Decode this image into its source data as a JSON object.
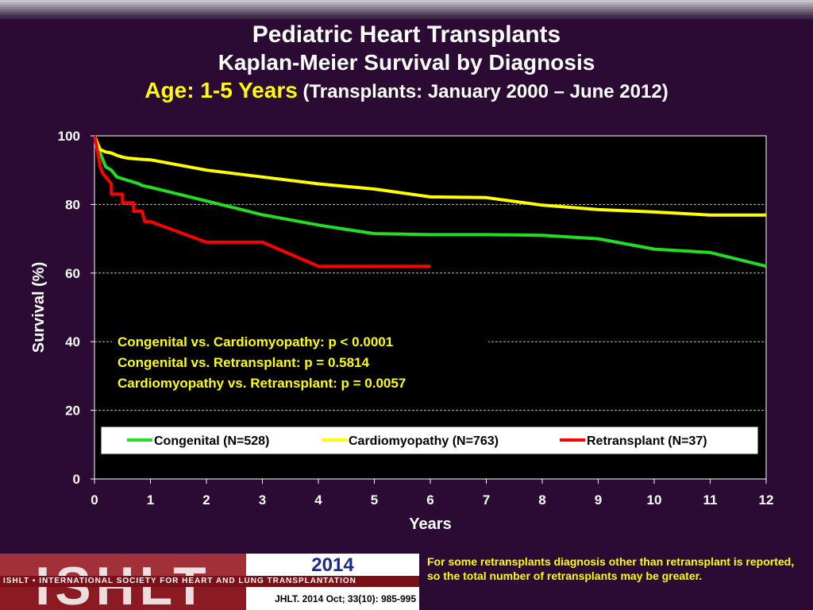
{
  "title": {
    "line1": "Pediatric Heart Transplants",
    "line2": "Kaplan-Meier Survival by Diagnosis",
    "line3_highlight": "Age: 1-5 Years",
    "line3_rest": "(Transplants: January 2000 – June 2012)"
  },
  "chart_data": {
    "type": "line",
    "xlabel": "Years",
    "ylabel": "Survival (%)",
    "xlim": [
      0,
      12
    ],
    "ylim": [
      0,
      100
    ],
    "xticks": [
      "0",
      "1",
      "2",
      "3",
      "4",
      "5",
      "6",
      "7",
      "8",
      "9",
      "10",
      "11",
      "12"
    ],
    "yticks": [
      "0",
      "20",
      "40",
      "60",
      "80",
      "100"
    ],
    "grid": "horizontal dashed",
    "background": "#000000",
    "annotations": [
      "Congenital vs. Cardiomyopathy: p < 0.0001",
      "Congenital vs. Retransplant: p = 0.5814",
      "Cardiomyopathy vs. Retransplant: p = 0.0057"
    ],
    "legend_position": "bottom-inside",
    "series": [
      {
        "name": "Congenital (N=528)",
        "color": "#22dd22",
        "points": [
          [
            0,
            100
          ],
          [
            0.08,
            96
          ],
          [
            0.15,
            93
          ],
          [
            0.2,
            91
          ],
          [
            0.3,
            90
          ],
          [
            0.4,
            88
          ],
          [
            0.5,
            87.5
          ],
          [
            0.6,
            87
          ],
          [
            0.7,
            86.5
          ],
          [
            0.8,
            86
          ],
          [
            0.85,
            85.5
          ],
          [
            1,
            85
          ],
          [
            1.5,
            83
          ],
          [
            2,
            81
          ],
          [
            2.5,
            79
          ],
          [
            3,
            77
          ],
          [
            3.5,
            75.5
          ],
          [
            4,
            74
          ],
          [
            4.5,
            72.7
          ],
          [
            5,
            71.5
          ],
          [
            6,
            71.2
          ],
          [
            7,
            71.2
          ],
          [
            8,
            71
          ],
          [
            9,
            70
          ],
          [
            10,
            67
          ],
          [
            11,
            66
          ],
          [
            12,
            62
          ]
        ]
      },
      {
        "name": "Cardiomyopathy (N=763)",
        "color": "#ffff00",
        "points": [
          [
            0,
            100
          ],
          [
            0.05,
            98
          ],
          [
            0.1,
            96
          ],
          [
            0.2,
            95.3
          ],
          [
            0.3,
            95
          ],
          [
            0.4,
            94.3
          ],
          [
            0.5,
            93.8
          ],
          [
            0.6,
            93.5
          ],
          [
            0.8,
            93.2
          ],
          [
            1,
            93
          ],
          [
            1.5,
            91.5
          ],
          [
            2,
            90
          ],
          [
            3,
            88
          ],
          [
            4,
            86
          ],
          [
            5,
            84.5
          ],
          [
            6,
            82.2
          ],
          [
            7,
            82
          ],
          [
            8,
            79.8
          ],
          [
            9,
            78.5
          ],
          [
            10,
            77.8
          ],
          [
            11,
            76.9
          ],
          [
            12,
            76.9
          ]
        ]
      },
      {
        "name": "Retransplant (N=37)",
        "color": "#ff0000",
        "points": [
          [
            0,
            100
          ],
          [
            0.05,
            96
          ],
          [
            0.1,
            91
          ],
          [
            0.15,
            89
          ],
          [
            0.3,
            86
          ],
          [
            0.3,
            83
          ],
          [
            0.5,
            83
          ],
          [
            0.5,
            80.5
          ],
          [
            0.7,
            80.5
          ],
          [
            0.7,
            78
          ],
          [
            0.85,
            78
          ],
          [
            0.9,
            75
          ],
          [
            1,
            75
          ],
          [
            1.5,
            72
          ],
          [
            2,
            69
          ],
          [
            3,
            69
          ],
          [
            3.5,
            65.5
          ],
          [
            4,
            62
          ],
          [
            5,
            62
          ],
          [
            6,
            62
          ]
        ]
      }
    ]
  },
  "footer": {
    "year": "2014",
    "org_band": "ISHLT • INTERNATIONAL SOCIETY FOR HEART AND LUNG TRANSPLANTATION",
    "logo_text": "ISHLT",
    "citation": "JHLT. 2014 Oct; 33(10): 985-995",
    "note": "For some retransplants diagnosis other than retransplant is reported, so the total number of retransplants may be greater."
  }
}
